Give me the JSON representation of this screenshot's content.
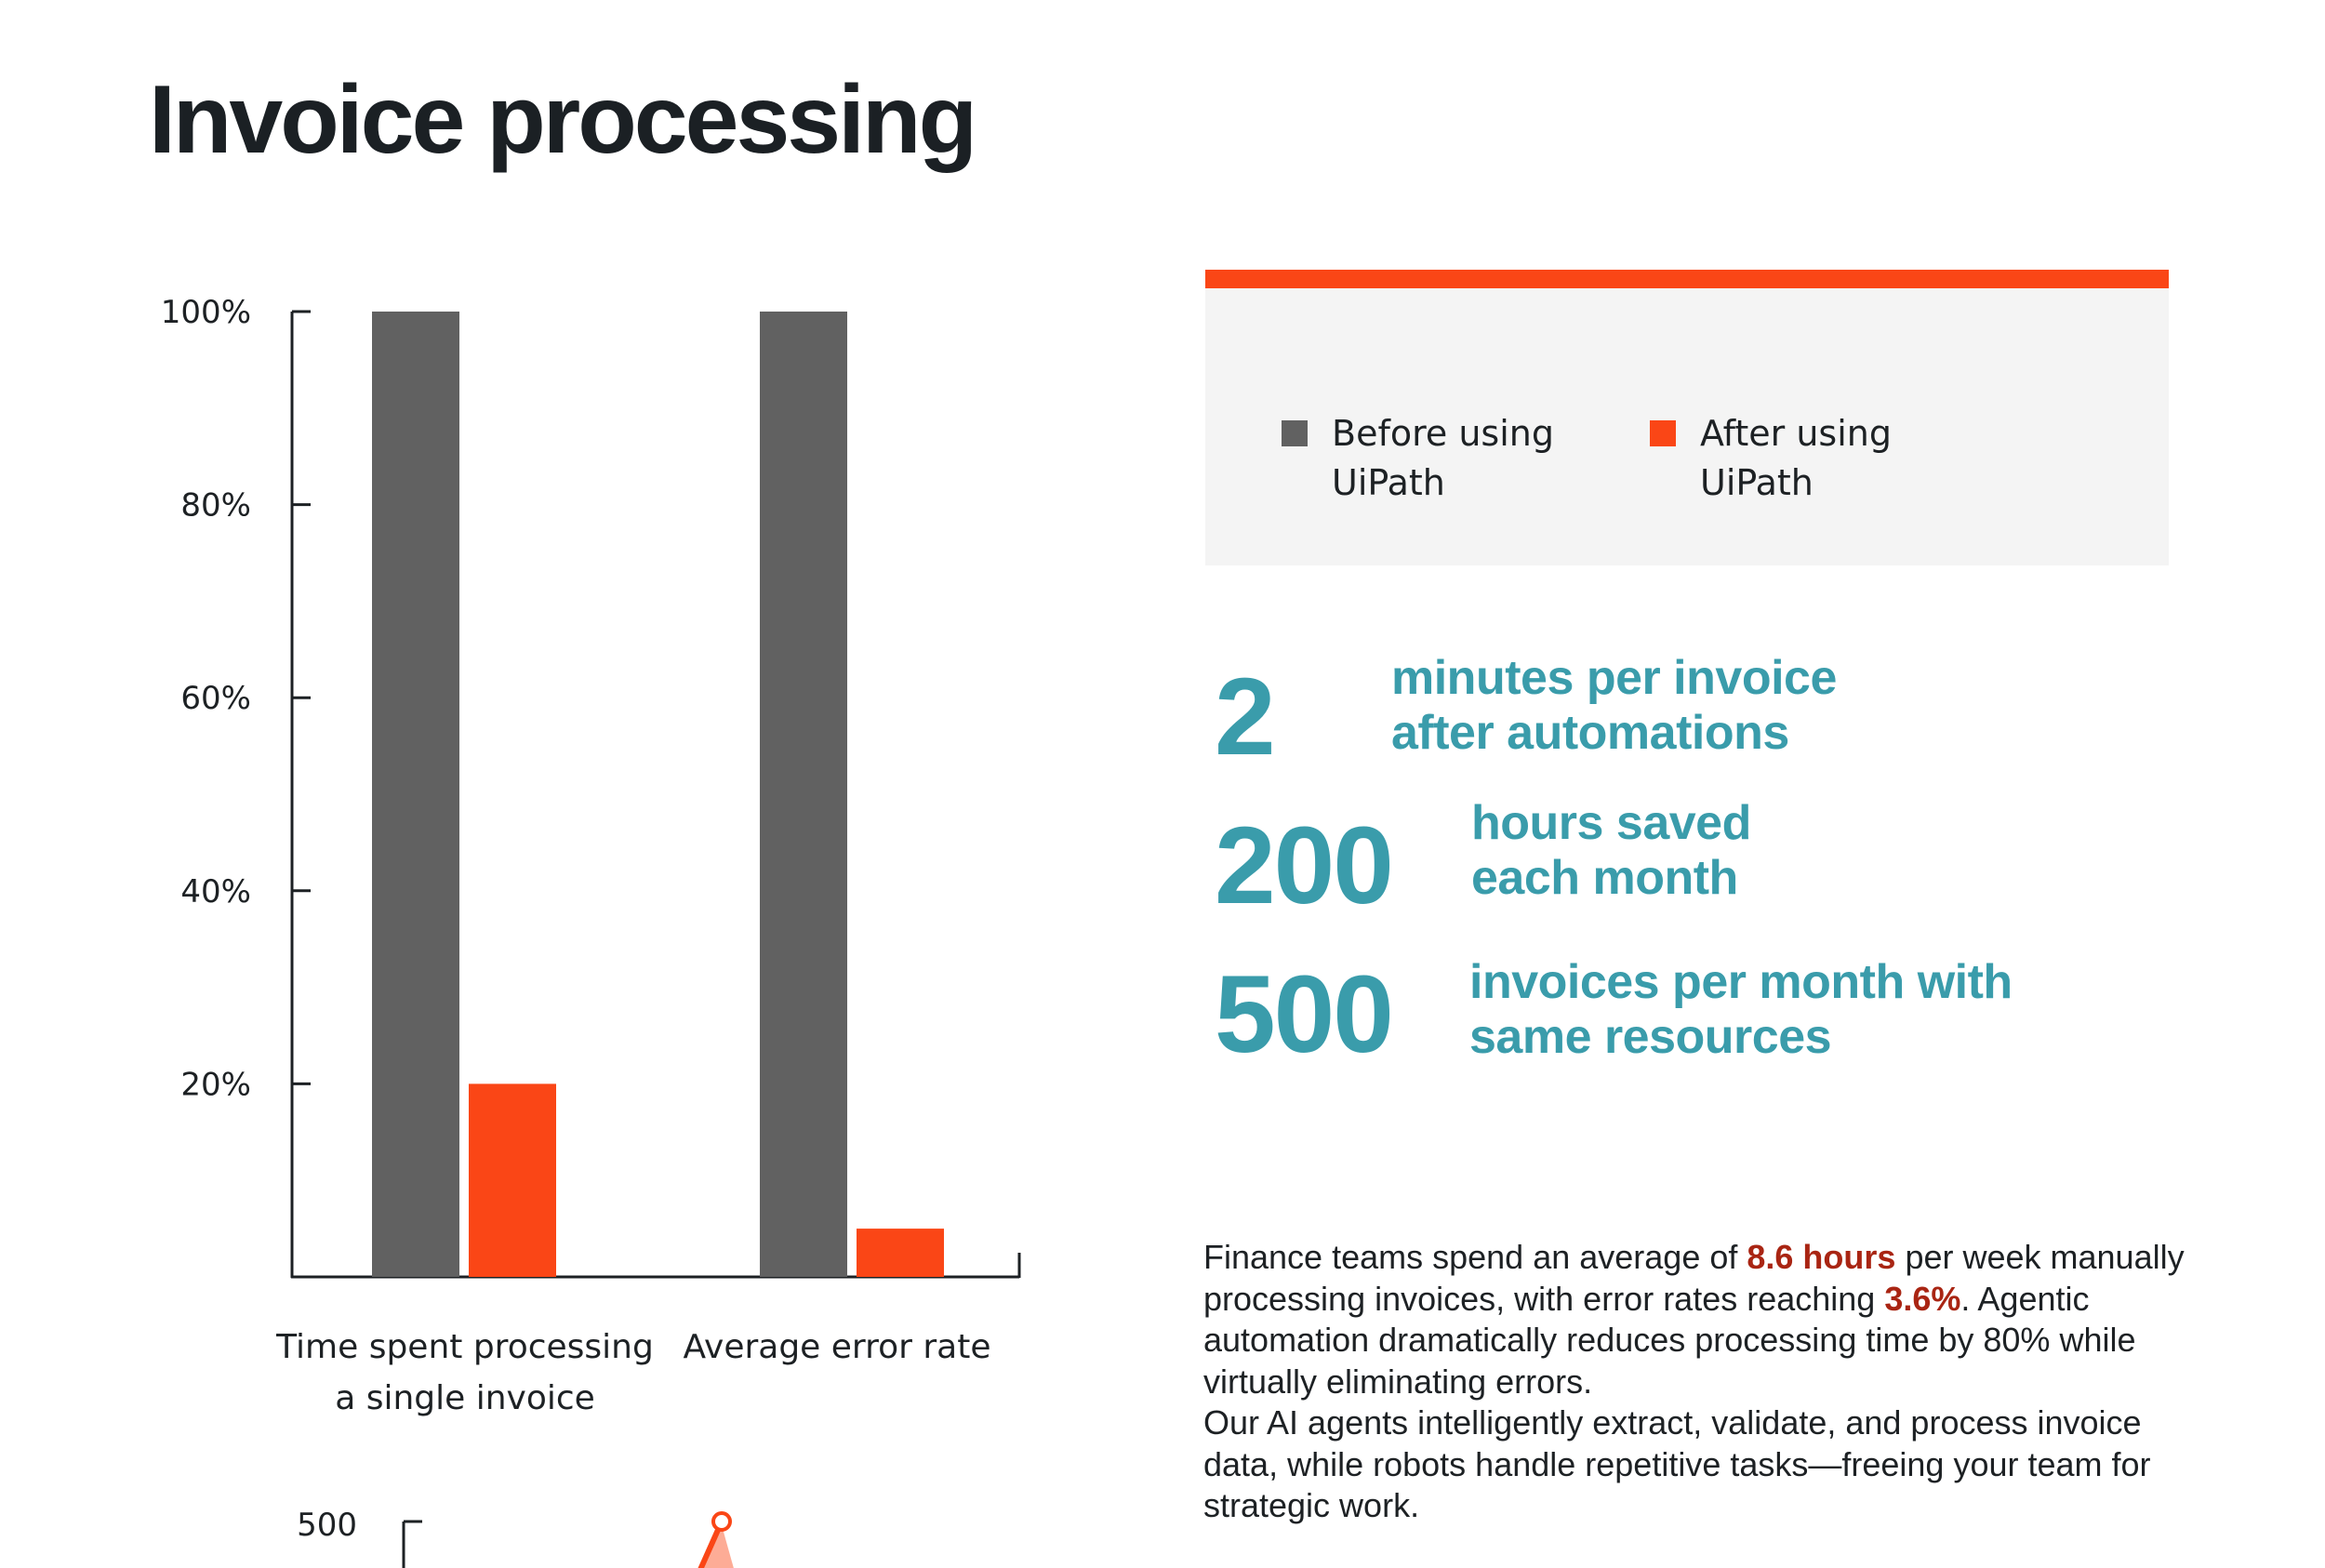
{
  "page": {
    "title": "Invoice processing"
  },
  "chart_data": [
    {
      "type": "bar",
      "categories": [
        "Time spent processing a single invoice",
        "Average error rate"
      ],
      "category_lines": [
        [
          "Time spent processing",
          "a single invoice"
        ],
        [
          "Average error rate"
        ]
      ],
      "series": [
        {
          "name": "Before using UiPath",
          "color": "#616161",
          "values": [
            100,
            100
          ]
        },
        {
          "name": "After using UiPath",
          "color": "#fa4616",
          "values": [
            20,
            5
          ]
        }
      ],
      "ylim": [
        0,
        100
      ],
      "yticks": [
        20,
        40,
        60,
        80,
        100
      ],
      "ytick_labels": [
        "20%",
        "40%",
        "60%",
        "80%",
        "100%"
      ],
      "ylabel": "",
      "xlabel": "",
      "grid": false,
      "legend": "right panel"
    },
    {
      "type": "line",
      "partial": true,
      "ytick_labels": [
        "500"
      ],
      "series": [
        {
          "name": "",
          "color": "#fa4616"
        }
      ]
    }
  ],
  "legend": {
    "items": [
      {
        "label": "Before using UiPath",
        "color": "#616161"
      },
      {
        "label": "After using UiPath",
        "color": "#fa4616"
      }
    ]
  },
  "stats": [
    {
      "value": "2",
      "line1": "minutes per invoice",
      "line2": "after automations"
    },
    {
      "value": "200",
      "line1": "hours saved",
      "line2": "each month"
    },
    {
      "value": "500",
      "line1": "invoices per month with",
      "line2": "same resources"
    }
  ],
  "body": {
    "p1_before": "Finance teams spend an average of ",
    "p1_hl1": "8.6 hours",
    "p1_mid": " per week manually processing invoices, with error rates reaching ",
    "p1_hl2": "3.6%",
    "p1_after": ". Agentic automation dramatically reduces processing time by 80% while virtually eliminating errors.",
    "p2": "Our AI agents intelligently extract, validate, and process invoice data, while robots handle repetitive tasks—freeing your team for strategic work."
  },
  "colors": {
    "accent": "#fa4616",
    "before": "#616161",
    "stat": "#3a9cab",
    "highlight": "#a92513",
    "panel": "#f4f4f4"
  }
}
